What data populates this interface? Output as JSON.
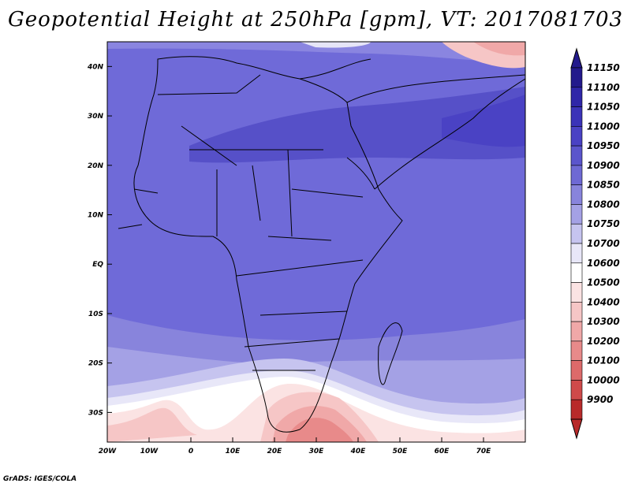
{
  "title": "Geopotential Height at 250hPa [gpm], VT: 2017081703",
  "footer": "GrADS: IGES/COLA",
  "map": {
    "lon_range": [
      -20,
      80
    ],
    "lat_range": [
      -36,
      45
    ],
    "lon_ticks": [
      "20W",
      "10W",
      "0",
      "10E",
      "20E",
      "30E",
      "40E",
      "50E",
      "60E",
      "70E"
    ],
    "lat_ticks": [
      "40N",
      "30N",
      "20N",
      "10N",
      "EQ",
      "10S",
      "20S",
      "30S"
    ]
  },
  "colorbar": {
    "levels": [
      "11150",
      "11100",
      "11050",
      "11000",
      "10950",
      "10900",
      "10850",
      "10800",
      "10750",
      "10700",
      "10600",
      "10500",
      "10400",
      "10300",
      "10200",
      "10100",
      "10000",
      "9900"
    ],
    "colors": [
      "#231a8c",
      "#2f26a8",
      "#3b33b8",
      "#4a42c4",
      "#5b55cc",
      "#6e69d4",
      "#8884dc",
      "#a4a1e5",
      "#c6c4ef",
      "#e8e7f8",
      "#ffffff",
      "#fbe3e3",
      "#f6c6c6",
      "#f0a8a8",
      "#e88a8a",
      "#dd6a6a",
      "#cf4a4a",
      "#b82a2a"
    ]
  }
}
